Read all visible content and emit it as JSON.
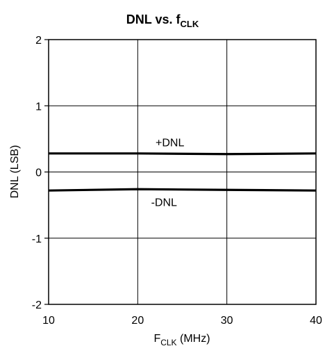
{
  "chart_data": {
    "type": "line",
    "title": {
      "main": "DNL vs. f",
      "sub": "CLK"
    },
    "xlabel": {
      "main": "F",
      "sub": "CLK",
      "rest": " (MHz)"
    },
    "ylabel": "DNL (LSB)",
    "xlim": [
      10,
      40
    ],
    "ylim": [
      -2,
      2
    ],
    "x_ticks": [
      10,
      20,
      30,
      40
    ],
    "y_ticks": [
      -2,
      -1,
      0,
      1,
      2
    ],
    "grid": true,
    "series": [
      {
        "name": "+DNL",
        "x": [
          10,
          20,
          30,
          40
        ],
        "y": [
          0.28,
          0.28,
          0.27,
          0.28
        ]
      },
      {
        "name": "-DNL",
        "x": [
          10,
          20,
          30,
          40
        ],
        "y": [
          -0.28,
          -0.26,
          -0.27,
          -0.28
        ]
      }
    ],
    "annotations": [
      {
        "text": "+DNL",
        "x": 22,
        "y": 0.45
      },
      {
        "text": "-DNL",
        "x": 21.5,
        "y": -0.45
      }
    ],
    "colors": {
      "line": "#000000",
      "grid": "#000000",
      "background": "#ffffff"
    }
  }
}
